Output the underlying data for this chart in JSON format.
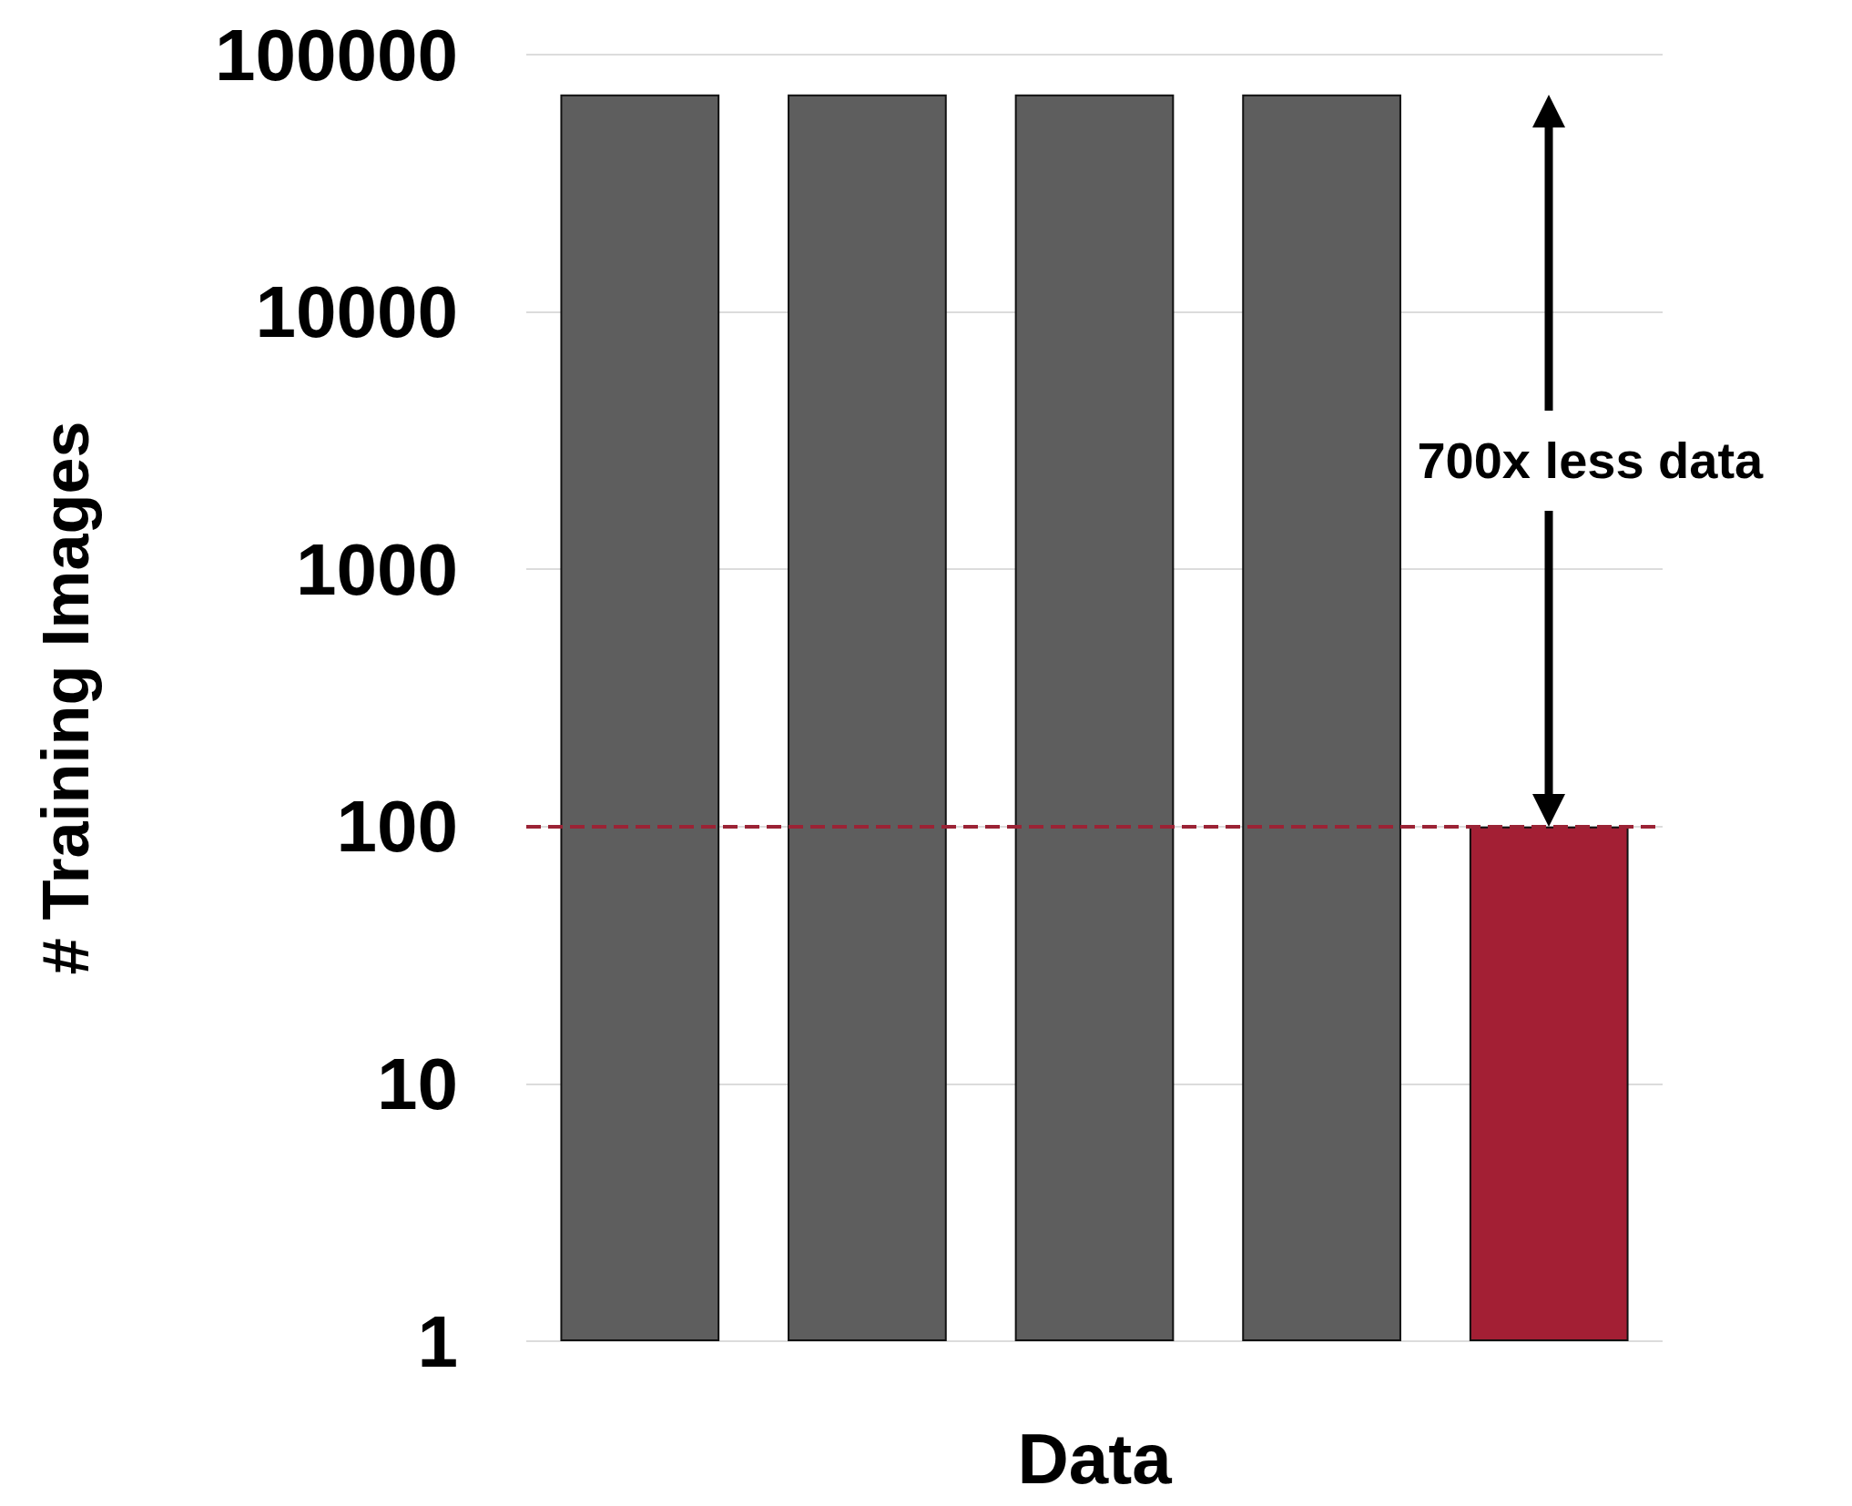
{
  "chart_data": {
    "type": "bar",
    "xlabel": "Data",
    "ylabel": "# Training Images",
    "categories": [
      null,
      null,
      null,
      null,
      null
    ],
    "values": [
      70000,
      70000,
      70000,
      70000,
      100
    ],
    "colors": [
      "#5e5e5e",
      "#5e5e5e",
      "#5e5e5e",
      "#5e5e5e",
      "#a31f34"
    ],
    "log": "y",
    "ylim": [
      1,
      100000
    ],
    "yticks": [
      1,
      10,
      100,
      1000,
      10000,
      100000
    ],
    "grid": "y",
    "ref_lines": [
      {
        "axis": "y",
        "value": 100,
        "color": "#9b2335",
        "line_style": "dashed"
      }
    ],
    "annotations": [
      "700x less data"
    ]
  }
}
